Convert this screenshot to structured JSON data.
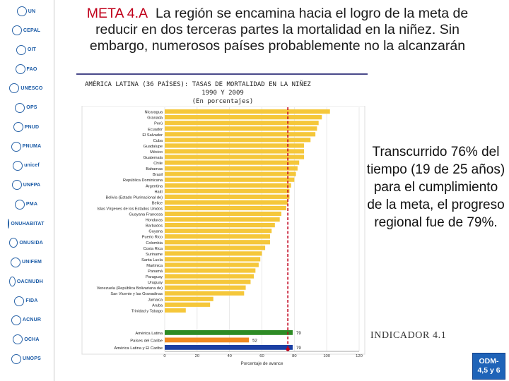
{
  "header": {
    "meta_label": "META 4.A",
    "title_rest": "La región se encamina hacia el logro de la meta de reducir en dos terceras partes la mortalidad en la niñez. Sin embargo, numerosos países probablemente no la alcanzarán"
  },
  "sidebar": {
    "logos": [
      {
        "name": "un-emblem-logo",
        "label": "UN"
      },
      {
        "name": "cepal-logo",
        "label": "CEPAL"
      },
      {
        "name": "ilo-logo",
        "label": "OIT"
      },
      {
        "name": "fao-logo",
        "label": "FAO"
      },
      {
        "name": "unesco-logo",
        "label": "UNESCO"
      },
      {
        "name": "ops-logo",
        "label": "OPS"
      },
      {
        "name": "pnud-logo",
        "label": "PNUD"
      },
      {
        "name": "pnuma-logo",
        "label": "PNUMA"
      },
      {
        "name": "unicef-logo",
        "label": "unicef"
      },
      {
        "name": "unfpa-logo",
        "label": "UNFPA"
      },
      {
        "name": "pma-logo",
        "label": "PMA"
      },
      {
        "name": "onu-habitat-logo",
        "label": "ONUHABITAT"
      },
      {
        "name": "onusida-logo",
        "label": "ONUSIDA"
      },
      {
        "name": "unifem-logo",
        "label": "UNIFEM"
      },
      {
        "name": "oacnudh-logo",
        "label": "OACNUDH"
      },
      {
        "name": "fida-logo",
        "label": "FIDA"
      },
      {
        "name": "acnur-logo",
        "label": "ACNUR"
      },
      {
        "name": "ocha-logo",
        "label": "OCHA"
      },
      {
        "name": "unops-logo",
        "label": "UNOPS"
      }
    ]
  },
  "colors": {
    "bar": "#f5c73a",
    "latin_america": "#2e8b25",
    "caribbean": "#f18a21",
    "latam_caribe": "#1b3fa3",
    "target_line": "#c0001a",
    "badge": "#1f63b8",
    "meta_text": "#c0001a"
  },
  "chart_data": {
    "type": "bar",
    "orientation": "horizontal",
    "title_lines": [
      "AMÉRICA LATINA (36 PAÍSES): TASAS DE MORTALIDAD EN LA NIÑEZ",
      "1990 Y 2009",
      "(En porcentajes)"
    ],
    "xlabel": "Porcentaje de avance",
    "xlim": [
      0,
      120
    ],
    "xticks": [
      0,
      20,
      40,
      60,
      80,
      100,
      120
    ],
    "target_line": 76,
    "categories": [
      "Nicaragua",
      "Granada",
      "Perú",
      "Ecuador",
      "El Salvador",
      "Cuba",
      "Guadalupe",
      "México",
      "Guatemala",
      "Chile",
      "Bahamas",
      "Brasil",
      "República Dominicana",
      "Argentina",
      "Haití",
      "Bolivia (Estado Plurinacional de)",
      "Belice",
      "Islas Vírgenes de los Estados Unidos",
      "Guayana Francesa",
      "Honduras",
      "Barbados",
      "Guyana",
      "Puerto Rico",
      "Colombia",
      "Costa Rica",
      "Suriname",
      "Santa Lucía",
      "Martinica",
      "Panamá",
      "Paraguay",
      "Uruguay",
      "Venezuela (República Bolivariana de)",
      "San Vicente y las Granadinas",
      "Jamaica",
      "Aruba",
      "Trinidad y Tabago"
    ],
    "values": [
      102,
      97,
      95,
      94,
      93,
      90,
      86,
      86,
      86,
      83,
      82,
      81,
      80,
      78,
      77,
      77,
      76,
      75,
      72,
      71,
      68,
      66,
      65,
      65,
      62,
      60,
      59,
      58,
      56,
      55,
      53,
      50,
      49,
      30,
      28,
      13
    ],
    "aggregates": [
      {
        "name": "América Latina",
        "value": 79,
        "label": "79",
        "color_key": "latin_america"
      },
      {
        "name": "Países del Caribe",
        "value": 52,
        "label": "52",
        "color_key": "caribbean"
      },
      {
        "name": "América Latina y El Caribe",
        "value": 79,
        "label": "79",
        "color_key": "latam_caribe"
      }
    ]
  },
  "annotation": {
    "text": "Transcurrido 76% del tiempo (19 de 25 años) para el cumplimiento de la meta, el progreso regional fue de 79%."
  },
  "indicator": {
    "text": "INDICADOR 4.1"
  },
  "badge": {
    "line1": "ODM-",
    "line2": "4,5 y 6"
  }
}
